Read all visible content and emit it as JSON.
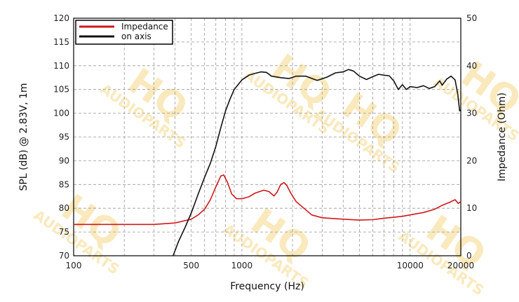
{
  "colors": {
    "impedance": "#d0181c",
    "on_axis": "#111111",
    "grid": "#9a9a9a",
    "watermark": "#f7e2a8"
  },
  "watermark": {
    "logo": "HQ",
    "text": "AUDIOPARTS"
  },
  "chart_data": {
    "type": "line",
    "xlabel": "Frequency (Hz)",
    "ylabel": "SPL (dB) @ 2.83V, 1m",
    "y2label": "Impedance (Ohm)",
    "xscale": "log",
    "xlim": [
      100,
      20000
    ],
    "ylim": [
      70,
      120
    ],
    "y2lim": [
      0,
      50
    ],
    "grid": true,
    "legend_position": "top-left",
    "x_ticks": [
      100,
      500,
      1000,
      10000,
      20000
    ],
    "x_tick_labels": [
      "100",
      "500",
      "1000",
      "10000",
      "20000"
    ],
    "y_ticks": [
      70,
      75,
      80,
      85,
      90,
      95,
      100,
      105,
      110,
      115,
      120
    ],
    "y_tick_labels": [
      "70",
      "75",
      "80",
      "85",
      "90",
      "95",
      "100",
      "105",
      "110",
      "115",
      "120"
    ],
    "y2_ticks": [
      0,
      10,
      20,
      30,
      40,
      50
    ],
    "y2_tick_labels": [
      "0",
      "10",
      "20",
      "30",
      "40",
      "50"
    ],
    "series": [
      {
        "name": "Impedance",
        "axis": "right",
        "color": "#d0181c",
        "points": [
          [
            100,
            6.6
          ],
          [
            200,
            6.6
          ],
          [
            300,
            6.6
          ],
          [
            400,
            6.9
          ],
          [
            500,
            7.7
          ],
          [
            550,
            8.6
          ],
          [
            600,
            9.8
          ],
          [
            650,
            11.8
          ],
          [
            700,
            14.5
          ],
          [
            750,
            16.8
          ],
          [
            780,
            17.0
          ],
          [
            820,
            15.5
          ],
          [
            870,
            13.0
          ],
          [
            930,
            12.0
          ],
          [
            1000,
            12.0
          ],
          [
            1100,
            12.4
          ],
          [
            1200,
            13.2
          ],
          [
            1350,
            13.8
          ],
          [
            1450,
            13.5
          ],
          [
            1550,
            12.6
          ],
          [
            1620,
            13.4
          ],
          [
            1700,
            15.0
          ],
          [
            1780,
            15.4
          ],
          [
            1850,
            14.8
          ],
          [
            1950,
            13.2
          ],
          [
            2100,
            11.4
          ],
          [
            2300,
            10.2
          ],
          [
            2600,
            8.6
          ],
          [
            3000,
            8.0
          ],
          [
            4000,
            7.7
          ],
          [
            5000,
            7.5
          ],
          [
            6000,
            7.6
          ],
          [
            7000,
            7.9
          ],
          [
            8000,
            8.1
          ],
          [
            9000,
            8.3
          ],
          [
            10000,
            8.6
          ],
          [
            12000,
            9.1
          ],
          [
            14000,
            9.8
          ],
          [
            15500,
            10.6
          ],
          [
            17000,
            11.2
          ],
          [
            18500,
            11.8
          ],
          [
            19300,
            11.0
          ],
          [
            20000,
            11.4
          ]
        ]
      },
      {
        "name": "on axis",
        "color": "#111111",
        "axis": "left",
        "points": [
          [
            390,
            70.0
          ],
          [
            420,
            73.0
          ],
          [
            460,
            76.0
          ],
          [
            500,
            79.0
          ],
          [
            550,
            83.0
          ],
          [
            600,
            86.5
          ],
          [
            650,
            89.5
          ],
          [
            700,
            93.0
          ],
          [
            750,
            97.0
          ],
          [
            800,
            100.5
          ],
          [
            850,
            103.0
          ],
          [
            900,
            105.0
          ],
          [
            1000,
            107.0
          ],
          [
            1100,
            108.0
          ],
          [
            1200,
            108.4
          ],
          [
            1300,
            108.7
          ],
          [
            1400,
            108.6
          ],
          [
            1500,
            107.8
          ],
          [
            1700,
            107.5
          ],
          [
            1900,
            107.3
          ],
          [
            2100,
            107.8
          ],
          [
            2400,
            107.8
          ],
          [
            2800,
            106.9
          ],
          [
            3200,
            107.6
          ],
          [
            3600,
            108.5
          ],
          [
            4000,
            108.7
          ],
          [
            4300,
            109.2
          ],
          [
            4600,
            108.9
          ],
          [
            5000,
            107.8
          ],
          [
            5500,
            107.1
          ],
          [
            6000,
            107.7
          ],
          [
            6500,
            108.2
          ],
          [
            7000,
            108.0
          ],
          [
            7500,
            107.9
          ],
          [
            8000,
            106.8
          ],
          [
            8500,
            105.0
          ],
          [
            9000,
            106.0
          ],
          [
            9500,
            105.0
          ],
          [
            10000,
            105.6
          ],
          [
            11000,
            105.4
          ],
          [
            12000,
            105.8
          ],
          [
            13000,
            105.2
          ],
          [
            14000,
            105.6
          ],
          [
            15000,
            106.8
          ],
          [
            15500,
            105.9
          ],
          [
            16500,
            107.2
          ],
          [
            17500,
            107.8
          ],
          [
            18500,
            107.0
          ],
          [
            19200,
            104.0
          ],
          [
            19700,
            100.5
          ],
          [
            20000,
            100.8
          ]
        ]
      }
    ]
  }
}
